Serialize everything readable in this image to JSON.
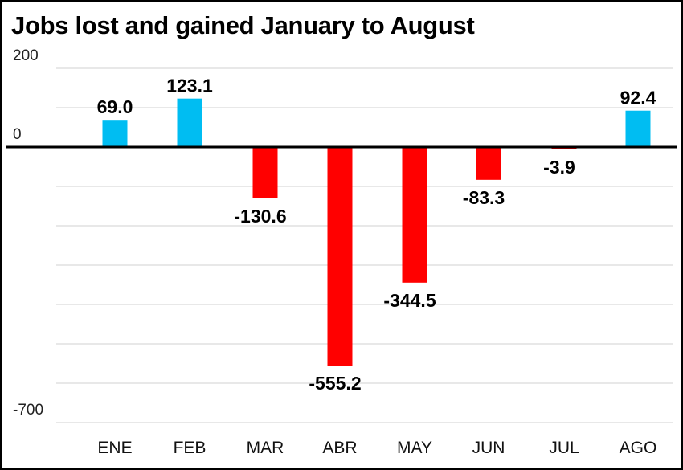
{
  "chart_data": {
    "type": "bar",
    "title": "Jobs lost and gained January to August",
    "categories": [
      "ENE",
      "FEB",
      "MAR",
      "ABR",
      "MAY",
      "JUN",
      "JUL",
      "AGO"
    ],
    "values": [
      69.0,
      123.1,
      -130.6,
      -555.2,
      -344.5,
      -83.3,
      -3.9,
      92.4
    ],
    "value_labels": [
      "69.0",
      "123.1",
      "-130.6",
      "-555.2",
      "-344.5",
      "-83.3",
      "-3.9",
      "92.4"
    ],
    "ytick_labels": [
      "200",
      "0",
      "-700"
    ],
    "ytick_values": [
      200,
      0,
      -700
    ],
    "ylim": [
      -700,
      200
    ],
    "grid_step": 100,
    "grid": true,
    "legend": false,
    "colors": {
      "positive": "#00bdf2",
      "negative": "#ff0000",
      "zero_line": "#000000",
      "grid": "#d9d9d9"
    }
  }
}
